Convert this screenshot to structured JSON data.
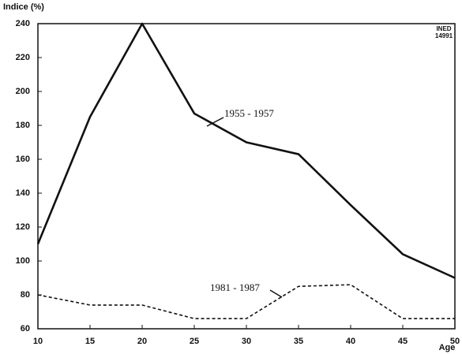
{
  "chart_data": {
    "type": "line",
    "y_label": "Indice (%)",
    "x_label": "Age",
    "source": [
      "INED",
      "14991"
    ],
    "x": [
      10,
      15,
      20,
      25,
      30,
      35,
      40,
      45,
      50
    ],
    "series": [
      {
        "name": "1955 - 1957",
        "color": "#111111",
        "style": "solid",
        "values": [
          110,
          185,
          240,
          187,
          170,
          163,
          133,
          104,
          90
        ]
      },
      {
        "name": "1981 - 1987",
        "color": "#111111",
        "style": "dashed",
        "values": [
          80,
          74,
          74,
          66,
          66,
          85,
          86,
          66,
          66
        ]
      }
    ],
    "xlim": [
      10,
      50
    ],
    "xticks": [
      10,
      15,
      20,
      25,
      30,
      35,
      40,
      45,
      50
    ],
    "ylim": [
      60,
      240
    ],
    "yticks": [
      60,
      80,
      100,
      120,
      140,
      160,
      180,
      200,
      220,
      240
    ]
  }
}
